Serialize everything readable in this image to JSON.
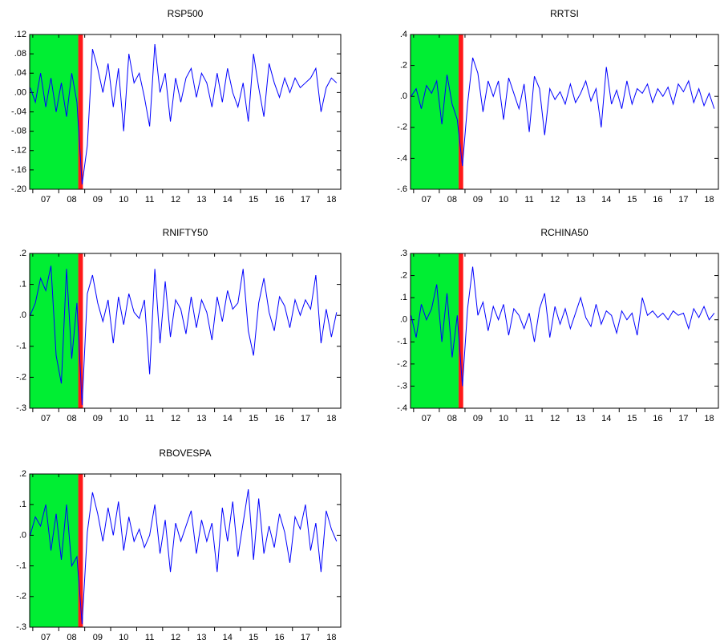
{
  "chart_data": [
    {
      "type": "line",
      "title": "RSP500",
      "x": [
        2006.9,
        2007.1,
        2007.3,
        2007.5,
        2007.7,
        2007.9,
        2008.1,
        2008.3,
        2008.5,
        2008.7,
        2008.9,
        2009.1,
        2009.3,
        2009.5,
        2009.7,
        2009.9,
        2010.1,
        2010.3,
        2010.5,
        2010.7,
        2010.9,
        2011.1,
        2011.3,
        2011.5,
        2011.7,
        2011.9,
        2012.1,
        2012.3,
        2012.5,
        2012.7,
        2012.9,
        2013.1,
        2013.3,
        2013.5,
        2013.7,
        2013.9,
        2014.1,
        2014.3,
        2014.5,
        2014.7,
        2014.9,
        2015.1,
        2015.3,
        2015.5,
        2015.7,
        2015.9,
        2016.1,
        2016.3,
        2016.5,
        2016.7,
        2016.9,
        2017.1,
        2017.3,
        2017.5,
        2017.7,
        2017.9,
        2018.1,
        2018.3,
        2018.5,
        2018.7
      ],
      "values": [
        0.01,
        -0.02,
        0.04,
        -0.03,
        0.03,
        -0.04,
        0.02,
        -0.05,
        0.04,
        -0.02,
        -0.19,
        -0.11,
        0.09,
        0.05,
        0.0,
        0.06,
        -0.03,
        0.05,
        -0.08,
        0.08,
        0.02,
        0.04,
        -0.01,
        -0.07,
        0.1,
        0.0,
        0.04,
        -0.06,
        0.03,
        -0.02,
        0.03,
        0.05,
        -0.01,
        0.04,
        0.02,
        -0.03,
        0.04,
        -0.02,
        0.05,
        0.0,
        -0.03,
        0.02,
        -0.06,
        0.08,
        0.01,
        -0.05,
        0.06,
        0.02,
        -0.01,
        0.03,
        0.0,
        0.03,
        0.01,
        0.02,
        0.03,
        0.05,
        -0.04,
        0.01,
        0.03,
        0.02
      ],
      "color": "#0000ff",
      "xlim": [
        2006.88,
        2018.86
      ],
      "xticks": [
        {
          "value": 2007,
          "label": "07"
        },
        {
          "value": 2008,
          "label": "08"
        },
        {
          "value": 2009,
          "label": "09"
        },
        {
          "value": 2010,
          "label": "10"
        },
        {
          "value": 2011,
          "label": "11"
        },
        {
          "value": 2012,
          "label": "12"
        },
        {
          "value": 2013,
          "label": "13"
        },
        {
          "value": 2014,
          "label": "14"
        },
        {
          "value": 2015,
          "label": "15"
        },
        {
          "value": 2016,
          "label": "16"
        },
        {
          "value": 2017,
          "label": "17"
        },
        {
          "value": 2018,
          "label": "18"
        }
      ],
      "ylim": [
        -0.2,
        0.12
      ],
      "yticks": [
        {
          "value": -0.2,
          "label": "-.20"
        },
        {
          "value": -0.16,
          "label": "-.16"
        },
        {
          "value": -0.12,
          "label": "-.12"
        },
        {
          "value": -0.08,
          "label": "-.08"
        },
        {
          "value": -0.04,
          "label": "-.04"
        },
        {
          "value": 0,
          "label": ".00"
        },
        {
          "value": 0.04,
          "label": ".04"
        },
        {
          "value": 0.08,
          "label": ".08"
        },
        {
          "value": 0.12,
          "label": ".12"
        }
      ],
      "shaded_regions": [
        {
          "from": 2006.88,
          "to": 2008.75,
          "color": "#00ee33"
        },
        {
          "from": 2008.75,
          "to": 2008.93,
          "color": "#ff1a1a"
        }
      ]
    },
    {
      "type": "line",
      "title": "RRTSI",
      "x": [
        2006.9,
        2007.1,
        2007.3,
        2007.5,
        2007.7,
        2007.9,
        2008.1,
        2008.3,
        2008.5,
        2008.7,
        2008.9,
        2009.1,
        2009.3,
        2009.5,
        2009.7,
        2009.9,
        2010.1,
        2010.3,
        2010.5,
        2010.7,
        2010.9,
        2011.1,
        2011.3,
        2011.5,
        2011.7,
        2011.9,
        2012.1,
        2012.3,
        2012.5,
        2012.7,
        2012.9,
        2013.1,
        2013.3,
        2013.5,
        2013.7,
        2013.9,
        2014.1,
        2014.3,
        2014.5,
        2014.7,
        2014.9,
        2015.1,
        2015.3,
        2015.5,
        2015.7,
        2015.9,
        2016.1,
        2016.3,
        2016.5,
        2016.7,
        2016.9,
        2017.1,
        2017.3,
        2017.5,
        2017.7,
        2017.9,
        2018.1,
        2018.3,
        2018.5,
        2018.7
      ],
      "values": [
        0.0,
        0.05,
        -0.08,
        0.07,
        0.02,
        0.1,
        -0.18,
        0.14,
        -0.05,
        -0.15,
        -0.45,
        -0.05,
        0.25,
        0.15,
        -0.1,
        0.1,
        0.0,
        0.1,
        -0.15,
        0.12,
        0.02,
        -0.08,
        0.08,
        -0.23,
        0.13,
        0.05,
        -0.25,
        0.05,
        -0.02,
        0.03,
        -0.05,
        0.08,
        -0.04,
        0.02,
        0.1,
        -0.03,
        0.05,
        -0.2,
        0.19,
        -0.05,
        0.04,
        -0.08,
        0.1,
        -0.05,
        0.05,
        0.02,
        0.08,
        -0.04,
        0.05,
        0.0,
        0.06,
        -0.05,
        0.08,
        0.03,
        0.1,
        -0.04,
        0.05,
        -0.06,
        0.02,
        -0.08
      ],
      "color": "#0000ff",
      "xlim": [
        2006.88,
        2018.86
      ],
      "xticks": [
        {
          "value": 2007,
          "label": "07"
        },
        {
          "value": 2008,
          "label": "08"
        },
        {
          "value": 2009,
          "label": "09"
        },
        {
          "value": 2010,
          "label": "10"
        },
        {
          "value": 2011,
          "label": "11"
        },
        {
          "value": 2012,
          "label": "12"
        },
        {
          "value": 2013,
          "label": "13"
        },
        {
          "value": 2014,
          "label": "14"
        },
        {
          "value": 2015,
          "label": "15"
        },
        {
          "value": 2016,
          "label": "16"
        },
        {
          "value": 2017,
          "label": "17"
        },
        {
          "value": 2018,
          "label": "18"
        }
      ],
      "ylim": [
        -0.6,
        0.4
      ],
      "yticks": [
        {
          "value": -0.6,
          "label": "-.6"
        },
        {
          "value": -0.4,
          "label": "-.4"
        },
        {
          "value": -0.2,
          "label": "-.2"
        },
        {
          "value": 0,
          "label": ".0"
        },
        {
          "value": 0.2,
          "label": ".2"
        },
        {
          "value": 0.4,
          "label": ".4"
        }
      ],
      "shaded_regions": [
        {
          "from": 2006.88,
          "to": 2008.75,
          "color": "#00ee33"
        },
        {
          "from": 2008.75,
          "to": 2008.93,
          "color": "#ff1a1a"
        }
      ]
    },
    {
      "type": "line",
      "title": "RNIFTY50",
      "x": [
        2006.9,
        2007.1,
        2007.3,
        2007.5,
        2007.7,
        2007.9,
        2008.1,
        2008.3,
        2008.5,
        2008.7,
        2008.9,
        2009.1,
        2009.3,
        2009.5,
        2009.7,
        2009.9,
        2010.1,
        2010.3,
        2010.5,
        2010.7,
        2010.9,
        2011.1,
        2011.3,
        2011.5,
        2011.7,
        2011.9,
        2012.1,
        2012.3,
        2012.5,
        2012.7,
        2012.9,
        2013.1,
        2013.3,
        2013.5,
        2013.7,
        2013.9,
        2014.1,
        2014.3,
        2014.5,
        2014.7,
        2014.9,
        2015.1,
        2015.3,
        2015.5,
        2015.7,
        2015.9,
        2016.1,
        2016.3,
        2016.5,
        2016.7,
        2016.9,
        2017.1,
        2017.3,
        2017.5,
        2017.7,
        2017.9,
        2018.1,
        2018.3,
        2018.5,
        2018.7
      ],
      "values": [
        0.0,
        0.04,
        0.12,
        0.08,
        0.16,
        -0.13,
        -0.22,
        0.15,
        -0.14,
        0.04,
        -0.29,
        0.07,
        0.13,
        0.04,
        -0.02,
        0.05,
        -0.09,
        0.06,
        -0.03,
        0.07,
        0.01,
        -0.01,
        0.05,
        -0.19,
        0.15,
        -0.09,
        0.11,
        -0.07,
        0.05,
        0.02,
        -0.06,
        0.06,
        -0.04,
        0.05,
        0.01,
        -0.08,
        0.06,
        -0.02,
        0.08,
        0.02,
        0.04,
        0.15,
        -0.05,
        -0.13,
        0.04,
        0.12,
        0.01,
        -0.05,
        0.06,
        0.03,
        -0.04,
        0.05,
        0.0,
        0.05,
        0.02,
        0.13,
        -0.09,
        0.02,
        -0.07,
        0.01
      ],
      "color": "#0000ff",
      "xlim": [
        2006.88,
        2018.86
      ],
      "xticks": [
        {
          "value": 2007,
          "label": "07"
        },
        {
          "value": 2008,
          "label": "08"
        },
        {
          "value": 2009,
          "label": "09"
        },
        {
          "value": 2010,
          "label": "10"
        },
        {
          "value": 2011,
          "label": "11"
        },
        {
          "value": 2012,
          "label": "12"
        },
        {
          "value": 2013,
          "label": "13"
        },
        {
          "value": 2014,
          "label": "14"
        },
        {
          "value": 2015,
          "label": "15"
        },
        {
          "value": 2016,
          "label": "16"
        },
        {
          "value": 2017,
          "label": "17"
        },
        {
          "value": 2018,
          "label": "18"
        }
      ],
      "ylim": [
        -0.3,
        0.2
      ],
      "yticks": [
        {
          "value": -0.3,
          "label": "-.3"
        },
        {
          "value": -0.2,
          "label": "-.2"
        },
        {
          "value": -0.1,
          "label": "-.1"
        },
        {
          "value": 0,
          "label": ".0"
        },
        {
          "value": 0.1,
          "label": ".1"
        },
        {
          "value": 0.2,
          "label": ".2"
        }
      ],
      "shaded_regions": [
        {
          "from": 2006.88,
          "to": 2008.75,
          "color": "#00ee33"
        },
        {
          "from": 2008.75,
          "to": 2008.93,
          "color": "#ff1a1a"
        }
      ]
    },
    {
      "type": "line",
      "title": "RCHINA50",
      "x": [
        2006.9,
        2007.1,
        2007.3,
        2007.5,
        2007.7,
        2007.9,
        2008.1,
        2008.3,
        2008.5,
        2008.7,
        2008.9,
        2009.1,
        2009.3,
        2009.5,
        2009.7,
        2009.9,
        2010.1,
        2010.3,
        2010.5,
        2010.7,
        2010.9,
        2011.1,
        2011.3,
        2011.5,
        2011.7,
        2011.9,
        2012.1,
        2012.3,
        2012.5,
        2012.7,
        2012.9,
        2013.1,
        2013.3,
        2013.5,
        2013.7,
        2013.9,
        2014.1,
        2014.3,
        2014.5,
        2014.7,
        2014.9,
        2015.1,
        2015.3,
        2015.5,
        2015.7,
        2015.9,
        2016.1,
        2016.3,
        2016.5,
        2016.7,
        2016.9,
        2017.1,
        2017.3,
        2017.5,
        2017.7,
        2017.9,
        2018.1,
        2018.3,
        2018.5,
        2018.7
      ],
      "values": [
        0.02,
        -0.08,
        0.07,
        0.0,
        0.05,
        0.16,
        -0.1,
        0.12,
        -0.17,
        0.02,
        -0.3,
        0.05,
        0.24,
        0.02,
        0.08,
        -0.05,
        0.06,
        0.0,
        0.07,
        -0.07,
        0.05,
        0.02,
        -0.04,
        0.03,
        -0.1,
        0.05,
        0.12,
        -0.08,
        0.06,
        -0.02,
        0.05,
        -0.04,
        0.03,
        0.1,
        0.01,
        -0.03,
        0.07,
        -0.02,
        0.04,
        0.02,
        -0.06,
        0.04,
        0.0,
        0.03,
        -0.07,
        0.1,
        0.02,
        0.04,
        0.01,
        0.03,
        0.0,
        0.04,
        0.02,
        0.03,
        -0.04,
        0.05,
        0.01,
        0.06,
        0.0,
        0.03
      ],
      "color": "#0000ff",
      "xlim": [
        2006.88,
        2018.86
      ],
      "xticks": [
        {
          "value": 2007,
          "label": "07"
        },
        {
          "value": 2008,
          "label": "08"
        },
        {
          "value": 2009,
          "label": "09"
        },
        {
          "value": 2010,
          "label": "10"
        },
        {
          "value": 2011,
          "label": "11"
        },
        {
          "value": 2012,
          "label": "12"
        },
        {
          "value": 2013,
          "label": "13"
        },
        {
          "value": 2014,
          "label": "14"
        },
        {
          "value": 2015,
          "label": "15"
        },
        {
          "value": 2016,
          "label": "16"
        },
        {
          "value": 2017,
          "label": "17"
        },
        {
          "value": 2018,
          "label": "18"
        }
      ],
      "ylim": [
        -0.4,
        0.3
      ],
      "yticks": [
        {
          "value": -0.4,
          "label": "-.4"
        },
        {
          "value": -0.3,
          "label": "-.3"
        },
        {
          "value": -0.2,
          "label": "-.2"
        },
        {
          "value": -0.1,
          "label": "-.1"
        },
        {
          "value": 0,
          "label": ".0"
        },
        {
          "value": 0.1,
          "label": ".1"
        },
        {
          "value": 0.2,
          "label": ".2"
        },
        {
          "value": 0.3,
          "label": ".3"
        }
      ],
      "shaded_regions": [
        {
          "from": 2006.88,
          "to": 2008.75,
          "color": "#00ee33"
        },
        {
          "from": 2008.75,
          "to": 2008.93,
          "color": "#ff1a1a"
        }
      ]
    },
    {
      "type": "line",
      "title": "RBOVESPA",
      "x": [
        2006.9,
        2007.1,
        2007.3,
        2007.5,
        2007.7,
        2007.9,
        2008.1,
        2008.3,
        2008.5,
        2008.7,
        2008.9,
        2009.1,
        2009.3,
        2009.5,
        2009.7,
        2009.9,
        2010.1,
        2010.3,
        2010.5,
        2010.7,
        2010.9,
        2011.1,
        2011.3,
        2011.5,
        2011.7,
        2011.9,
        2012.1,
        2012.3,
        2012.5,
        2012.7,
        2012.9,
        2013.1,
        2013.3,
        2013.5,
        2013.7,
        2013.9,
        2014.1,
        2014.3,
        2014.5,
        2014.7,
        2014.9,
        2015.1,
        2015.3,
        2015.5,
        2015.7,
        2015.9,
        2016.1,
        2016.3,
        2016.5,
        2016.7,
        2016.9,
        2017.1,
        2017.3,
        2017.5,
        2017.7,
        2017.9,
        2018.1,
        2018.3,
        2018.5,
        2018.7
      ],
      "values": [
        0.0,
        0.06,
        0.03,
        0.1,
        -0.05,
        0.07,
        -0.08,
        0.1,
        -0.1,
        -0.07,
        -0.29,
        0.01,
        0.14,
        0.07,
        -0.02,
        0.09,
        0.0,
        0.11,
        -0.05,
        0.06,
        -0.02,
        0.02,
        -0.04,
        0.0,
        0.1,
        -0.06,
        0.05,
        -0.12,
        0.04,
        -0.02,
        0.03,
        0.08,
        -0.06,
        0.05,
        -0.02,
        0.04,
        -0.12,
        0.09,
        -0.02,
        0.11,
        -0.07,
        0.04,
        0.15,
        -0.08,
        0.12,
        -0.06,
        0.03,
        -0.04,
        0.07,
        0.01,
        -0.09,
        0.06,
        0.02,
        0.1,
        -0.05,
        0.04,
        -0.12,
        0.08,
        0.02,
        -0.02
      ],
      "color": "#0000ff",
      "xlim": [
        2006.88,
        2018.86
      ],
      "xticks": [
        {
          "value": 2007,
          "label": "07"
        },
        {
          "value": 2008,
          "label": "08"
        },
        {
          "value": 2009,
          "label": "09"
        },
        {
          "value": 2010,
          "label": "10"
        },
        {
          "value": 2011,
          "label": "11"
        },
        {
          "value": 2012,
          "label": "12"
        },
        {
          "value": 2013,
          "label": "13"
        },
        {
          "value": 2014,
          "label": "14"
        },
        {
          "value": 2015,
          "label": "15"
        },
        {
          "value": 2016,
          "label": "16"
        },
        {
          "value": 2017,
          "label": "17"
        },
        {
          "value": 2018,
          "label": "18"
        }
      ],
      "ylim": [
        -0.3,
        0.2
      ],
      "yticks": [
        {
          "value": -0.3,
          "label": "-.3"
        },
        {
          "value": -0.2,
          "label": "-.2"
        },
        {
          "value": -0.1,
          "label": "-.1"
        },
        {
          "value": 0,
          "label": ".0"
        },
        {
          "value": 0.1,
          "label": ".1"
        },
        {
          "value": 0.2,
          "label": ".2"
        }
      ],
      "shaded_regions": [
        {
          "from": 2006.88,
          "to": 2008.75,
          "color": "#00ee33"
        },
        {
          "from": 2008.75,
          "to": 2008.93,
          "color": "#ff1a1a"
        }
      ]
    }
  ]
}
